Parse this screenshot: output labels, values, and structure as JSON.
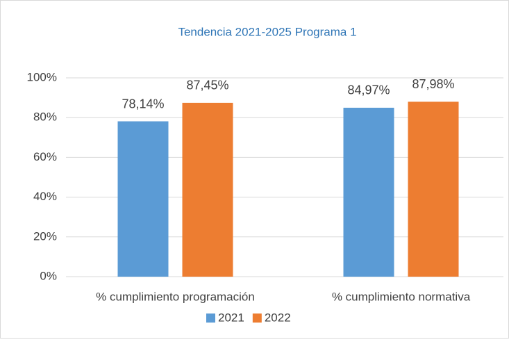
{
  "chart_data": {
    "type": "bar",
    "title": "Tendencia  2021-2025 Programa 1",
    "categories": [
      "% cumplimiento programación",
      "% cumplimiento normativa"
    ],
    "series": [
      {
        "name": "2021",
        "color": "#5b9bd5",
        "values": [
          78.14,
          84.97
        ],
        "value_labels": [
          "78,14%",
          "84,97%"
        ]
      },
      {
        "name": "2022",
        "color": "#ed7d31",
        "values": [
          87.45,
          87.98
        ],
        "value_labels": [
          "87,45%",
          "87,98%"
        ]
      }
    ],
    "ylim": [
      0,
      100
    ],
    "yticks": [
      {
        "value": 0,
        "label": "0%"
      },
      {
        "value": 20,
        "label": "20%"
      },
      {
        "value": 40,
        "label": "40%"
      },
      {
        "value": 60,
        "label": "60%"
      },
      {
        "value": 80,
        "label": "80%"
      },
      {
        "value": 100,
        "label": "100%"
      }
    ],
    "grid": true,
    "legend": "bottom"
  }
}
